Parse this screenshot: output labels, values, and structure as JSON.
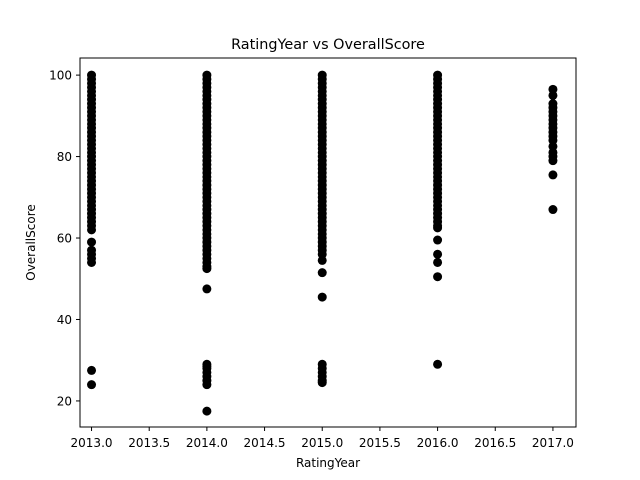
{
  "chart_data": {
    "type": "scatter",
    "title": "RatingYear vs OverallScore",
    "xlabel": "RatingYear",
    "ylabel": "OverallScore",
    "xlim": [
      2012.9,
      2017.2
    ],
    "ylim": [
      13.6,
      104.2
    ],
    "xticks": [
      2013.0,
      2013.5,
      2014.0,
      2014.5,
      2015.0,
      2015.5,
      2016.0,
      2016.5,
      2017.0
    ],
    "xtick_labels": [
      "2013.0",
      "2013.5",
      "2014.0",
      "2014.5",
      "2015.0",
      "2015.5",
      "2016.0",
      "2016.5",
      "2017.0"
    ],
    "yticks": [
      20,
      40,
      60,
      80,
      100
    ],
    "ytick_labels": [
      "20",
      "40",
      "60",
      "80",
      "100"
    ],
    "grid": false,
    "legend": "none",
    "marker_color": "#000000",
    "series": [
      {
        "points": [
          [
            2013,
            100
          ],
          [
            2013,
            99
          ],
          [
            2013,
            98
          ],
          [
            2013,
            97
          ],
          [
            2013,
            96
          ],
          [
            2013,
            95
          ],
          [
            2013,
            94
          ],
          [
            2013,
            93
          ],
          [
            2013,
            92
          ],
          [
            2013,
            91
          ],
          [
            2013,
            90
          ],
          [
            2013,
            89
          ],
          [
            2013,
            88
          ],
          [
            2013,
            87
          ],
          [
            2013,
            86
          ],
          [
            2013,
            85
          ],
          [
            2013,
            84
          ],
          [
            2013,
            83
          ],
          [
            2013,
            82
          ],
          [
            2013,
            81
          ],
          [
            2013,
            80
          ],
          [
            2013,
            79
          ],
          [
            2013,
            78
          ],
          [
            2013,
            77
          ],
          [
            2013,
            76
          ],
          [
            2013,
            75
          ],
          [
            2013,
            74
          ],
          [
            2013,
            73
          ],
          [
            2013,
            72
          ],
          [
            2013,
            71
          ],
          [
            2013,
            70
          ],
          [
            2013,
            69
          ],
          [
            2013,
            68
          ],
          [
            2013,
            67
          ],
          [
            2013,
            66
          ],
          [
            2013,
            65
          ],
          [
            2013,
            64
          ],
          [
            2013,
            63
          ],
          [
            2013,
            62
          ],
          [
            2013,
            59
          ],
          [
            2013,
            57
          ],
          [
            2013,
            56
          ],
          [
            2013,
            55
          ],
          [
            2013,
            54
          ],
          [
            2013,
            27.5
          ],
          [
            2013,
            24
          ],
          [
            2014,
            100
          ],
          [
            2014,
            99
          ],
          [
            2014,
            98
          ],
          [
            2014,
            97
          ],
          [
            2014,
            96
          ],
          [
            2014,
            95
          ],
          [
            2014,
            94
          ],
          [
            2014,
            93
          ],
          [
            2014,
            92
          ],
          [
            2014,
            91
          ],
          [
            2014,
            90
          ],
          [
            2014,
            89
          ],
          [
            2014,
            88
          ],
          [
            2014,
            87
          ],
          [
            2014,
            86
          ],
          [
            2014,
            85
          ],
          [
            2014,
            84
          ],
          [
            2014,
            83
          ],
          [
            2014,
            82
          ],
          [
            2014,
            81
          ],
          [
            2014,
            80
          ],
          [
            2014,
            79
          ],
          [
            2014,
            78
          ],
          [
            2014,
            77
          ],
          [
            2014,
            76
          ],
          [
            2014,
            75
          ],
          [
            2014,
            74
          ],
          [
            2014,
            73
          ],
          [
            2014,
            72
          ],
          [
            2014,
            71
          ],
          [
            2014,
            70
          ],
          [
            2014,
            69
          ],
          [
            2014,
            68
          ],
          [
            2014,
            67
          ],
          [
            2014,
            66
          ],
          [
            2014,
            65
          ],
          [
            2014,
            64
          ],
          [
            2014,
            63
          ],
          [
            2014,
            62
          ],
          [
            2014,
            61
          ],
          [
            2014,
            60
          ],
          [
            2014,
            59
          ],
          [
            2014,
            58
          ],
          [
            2014,
            57
          ],
          [
            2014,
            56
          ],
          [
            2014,
            55
          ],
          [
            2014,
            54
          ],
          [
            2014,
            53
          ],
          [
            2014,
            52.5
          ],
          [
            2014,
            47.5
          ],
          [
            2014,
            29
          ],
          [
            2014,
            28.5
          ],
          [
            2014,
            28
          ],
          [
            2014,
            27
          ],
          [
            2014,
            26
          ],
          [
            2014,
            25
          ],
          [
            2014,
            24
          ],
          [
            2014,
            17.5
          ],
          [
            2015,
            100
          ],
          [
            2015,
            99
          ],
          [
            2015,
            98
          ],
          [
            2015,
            97
          ],
          [
            2015,
            96
          ],
          [
            2015,
            95
          ],
          [
            2015,
            94
          ],
          [
            2015,
            93
          ],
          [
            2015,
            92
          ],
          [
            2015,
            91
          ],
          [
            2015,
            90
          ],
          [
            2015,
            89
          ],
          [
            2015,
            88
          ],
          [
            2015,
            87
          ],
          [
            2015,
            86
          ],
          [
            2015,
            85
          ],
          [
            2015,
            84
          ],
          [
            2015,
            83
          ],
          [
            2015,
            82
          ],
          [
            2015,
            81
          ],
          [
            2015,
            80
          ],
          [
            2015,
            79
          ],
          [
            2015,
            78
          ],
          [
            2015,
            77
          ],
          [
            2015,
            76
          ],
          [
            2015,
            75
          ],
          [
            2015,
            74
          ],
          [
            2015,
            73
          ],
          [
            2015,
            72
          ],
          [
            2015,
            71
          ],
          [
            2015,
            70
          ],
          [
            2015,
            69
          ],
          [
            2015,
            68
          ],
          [
            2015,
            67
          ],
          [
            2015,
            66
          ],
          [
            2015,
            65
          ],
          [
            2015,
            64
          ],
          [
            2015,
            63
          ],
          [
            2015,
            62
          ],
          [
            2015,
            61
          ],
          [
            2015,
            60
          ],
          [
            2015,
            59
          ],
          [
            2015,
            58
          ],
          [
            2015,
            57
          ],
          [
            2015,
            56
          ],
          [
            2015,
            54.5
          ],
          [
            2015,
            51.5
          ],
          [
            2015,
            45.5
          ],
          [
            2015,
            29
          ],
          [
            2015,
            28
          ],
          [
            2015,
            27
          ],
          [
            2015,
            26
          ],
          [
            2015,
            25
          ],
          [
            2015,
            24.5
          ],
          [
            2016,
            100
          ],
          [
            2016,
            99
          ],
          [
            2016,
            98
          ],
          [
            2016,
            97
          ],
          [
            2016,
            96
          ],
          [
            2016,
            95
          ],
          [
            2016,
            94
          ],
          [
            2016,
            93
          ],
          [
            2016,
            92
          ],
          [
            2016,
            91
          ],
          [
            2016,
            90
          ],
          [
            2016,
            89
          ],
          [
            2016,
            88
          ],
          [
            2016,
            87
          ],
          [
            2016,
            86
          ],
          [
            2016,
            85
          ],
          [
            2016,
            84
          ],
          [
            2016,
            83
          ],
          [
            2016,
            82
          ],
          [
            2016,
            81
          ],
          [
            2016,
            80
          ],
          [
            2016,
            79
          ],
          [
            2016,
            78
          ],
          [
            2016,
            77
          ],
          [
            2016,
            76
          ],
          [
            2016,
            75
          ],
          [
            2016,
            74
          ],
          [
            2016,
            73
          ],
          [
            2016,
            72
          ],
          [
            2016,
            71
          ],
          [
            2016,
            70
          ],
          [
            2016,
            69
          ],
          [
            2016,
            68
          ],
          [
            2016,
            67
          ],
          [
            2016,
            66
          ],
          [
            2016,
            65
          ],
          [
            2016,
            64
          ],
          [
            2016,
            63
          ],
          [
            2016,
            62.5
          ],
          [
            2016,
            59.5
          ],
          [
            2016,
            56
          ],
          [
            2016,
            54
          ],
          [
            2016,
            50.5
          ],
          [
            2016,
            29
          ],
          [
            2017,
            96.5
          ],
          [
            2017,
            95
          ],
          [
            2017,
            93
          ],
          [
            2017,
            92
          ],
          [
            2017,
            91
          ],
          [
            2017,
            90
          ],
          [
            2017,
            89
          ],
          [
            2017,
            88
          ],
          [
            2017,
            87
          ],
          [
            2017,
            86
          ],
          [
            2017,
            85
          ],
          [
            2017,
            84
          ],
          [
            2017,
            82.5
          ],
          [
            2017,
            81
          ],
          [
            2017,
            80
          ],
          [
            2017,
            79
          ],
          [
            2017,
            75.5
          ],
          [
            2017,
            67
          ]
        ]
      }
    ]
  }
}
